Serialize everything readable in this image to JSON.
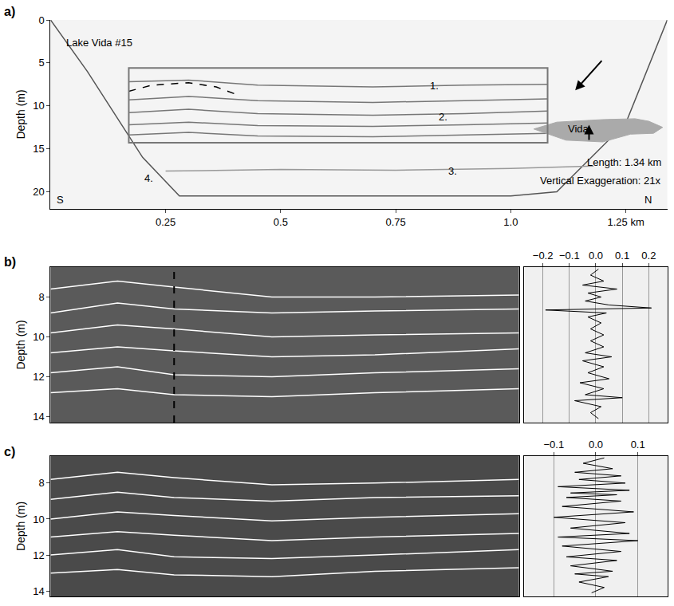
{
  "chart_data": [
    {
      "type": "line",
      "label": "a)",
      "ylabel": "Depth (m)",
      "xlim": [
        0,
        1.34
      ],
      "xticks": [
        0.25,
        0.5,
        0.75,
        {
          "value": 1,
          "label": "1.0"
        },
        {
          "value": 1.25,
          "label": "1.25 km"
        }
      ],
      "ylim": [
        22,
        0
      ],
      "yticks": [
        0,
        5,
        10,
        15,
        20
      ],
      "series": [
        {
          "color": "#555555",
          "line_style": "solid",
          "x": [
            0,
            0.08,
            0.2,
            0.28,
            0.5,
            1.0,
            1.1,
            1.25,
            1.34
          ],
          "values": [
            0,
            6,
            16,
            20.5,
            20.5,
            20.5,
            20,
            12,
            0
          ]
        },
        {
          "color": "#777777",
          "line_style": "solid",
          "x": [
            0.17,
            0.3,
            0.45,
            0.7,
            0.9,
            1.08
          ],
          "values": [
            7.2,
            7.0,
            7.6,
            7.8,
            7.6,
            7.5
          ]
        },
        {
          "color": "#777777",
          "line_style": "solid",
          "x": [
            0.17,
            0.3,
            0.45,
            0.7,
            0.9,
            1.08
          ],
          "values": [
            9.3,
            8.9,
            9.4,
            9.6,
            9.4,
            9.2
          ]
        },
        {
          "color": "#777777",
          "line_style": "solid",
          "x": [
            0.17,
            0.3,
            0.45,
            0.7,
            0.9,
            1.08
          ],
          "values": [
            10.8,
            10.4,
            10.9,
            11.1,
            10.9,
            10.6
          ]
        },
        {
          "color": "#777777",
          "line_style": "solid",
          "x": [
            0.17,
            0.3,
            0.45,
            0.7,
            0.9,
            1.08
          ],
          "values": [
            12.2,
            11.9,
            12.3,
            12.4,
            12.2,
            12.0
          ]
        },
        {
          "color": "#777777",
          "line_style": "solid",
          "x": [
            0.17,
            0.3,
            0.45,
            0.7,
            0.9,
            1.08
          ],
          "values": [
            13.4,
            13.1,
            13.5,
            13.6,
            13.4,
            13.2
          ]
        },
        {
          "color": "#999999",
          "line_style": "solid",
          "x": [
            0.25,
            0.5,
            0.75,
            1.0,
            1.18
          ],
          "values": [
            17.6,
            17.4,
            17.5,
            17.3,
            17.0
          ]
        },
        {
          "color": "#000000",
          "line_style": "dashed",
          "x": [
            0.17,
            0.22,
            0.3,
            0.36,
            0.4
          ],
          "values": [
            8.3,
            7.6,
            7.3,
            7.8,
            8.6
          ]
        },
        {
          "color": "#aaaaaa",
          "type": "area",
          "x": [
            1.05,
            1.1,
            1.2,
            1.27,
            1.3,
            1.33,
            1.31,
            1.26,
            1.2,
            1.12,
            1.05
          ],
          "values": [
            12.7,
            11.9,
            11.6,
            11.5,
            11.8,
            12.5,
            13.2,
            13.3,
            14.2,
            14.0,
            12.7
          ]
        }
      ],
      "box": {
        "x": [
          0.17,
          1.08
        ],
        "y": [
          5.6,
          14.3
        ],
        "color": "#777777"
      },
      "arrows": [
        {
          "x": 1.14,
          "y": 8.2,
          "from_x": 1.2,
          "from_y": 4.6,
          "color": "#000000"
        },
        {
          "x": 1.17,
          "y": 12.2,
          "from_x": 1.17,
          "from_y": 14.1,
          "color": "#000000"
        }
      ],
      "annotations": [
        {
          "text": "Lake Vida #15",
          "x": 0.03,
          "y": 2.6
        },
        {
          "text": "1.",
          "x": 0.82,
          "y": 7.7
        },
        {
          "text": "2.",
          "x": 0.84,
          "y": 11.3
        },
        {
          "text": "3.",
          "x": 0.86,
          "y": 17.6
        },
        {
          "text": "4.",
          "x": 0.2,
          "y": 18.4
        },
        {
          "text": "Vida",
          "x": 1.12,
          "y": 12.7
        },
        {
          "text": "Length: 1.34 km",
          "x": 1.33,
          "y": 16.6
        },
        {
          "text": "Vertical Exaggeration: 21x",
          "x": 1.33,
          "y": 18.7
        },
        {
          "text": "S",
          "x": 0.01,
          "y": 20.9
        },
        {
          "text": "N",
          "x": 1.31,
          "y": 20.9
        }
      ]
    },
    {
      "type": "line",
      "label": "b)",
      "ylabel": "Depth (m)",
      "tick_labels": "y",
      "xlim": [
        0.17,
        1.08
      ],
      "ylim": [
        14.3,
        6.5
      ],
      "yticks": [
        8,
        10,
        12,
        14
      ],
      "vline": {
        "x": 0.41,
        "color": "#000000",
        "line_style": "dashed"
      },
      "series": [
        {
          "color": "#ffffff",
          "line_style": "solid",
          "x": [
            0.17,
            0.3,
            0.41,
            0.6,
            0.8,
            1.08
          ],
          "values": [
            7.6,
            7.2,
            7.5,
            8.0,
            8.0,
            7.9
          ]
        },
        {
          "color": "#ffffff",
          "line_style": "solid",
          "x": [
            0.17,
            0.3,
            0.41,
            0.6,
            0.8,
            1.08
          ],
          "values": [
            8.8,
            8.3,
            8.6,
            8.8,
            8.7,
            8.6
          ]
        },
        {
          "color": "#ffffff",
          "line_style": "solid",
          "x": [
            0.17,
            0.3,
            0.41,
            0.6,
            0.8,
            1.08
          ],
          "values": [
            9.8,
            9.4,
            9.6,
            10.0,
            9.9,
            9.8
          ]
        },
        {
          "color": "#ffffff",
          "line_style": "solid",
          "x": [
            0.17,
            0.3,
            0.41,
            0.6,
            0.8,
            1.08
          ],
          "values": [
            10.8,
            10.5,
            10.7,
            11.0,
            10.9,
            10.6
          ]
        },
        {
          "color": "#ffffff",
          "line_style": "solid",
          "x": [
            0.17,
            0.3,
            0.41,
            0.6,
            0.8,
            1.08
          ],
          "values": [
            11.8,
            11.5,
            11.9,
            12.0,
            11.8,
            11.6
          ]
        },
        {
          "color": "#ffffff",
          "line_style": "solid",
          "x": [
            0.17,
            0.3,
            0.41,
            0.6,
            0.8,
            1.08
          ],
          "values": [
            12.8,
            12.6,
            12.9,
            13.0,
            12.8,
            12.6
          ]
        }
      ]
    },
    {
      "type": "line",
      "tick_labels": "x",
      "grid": true,
      "xlim": [
        -0.27,
        0.27
      ],
      "xticks": [
        {
          "value": -0.2,
          "label": "−0.2"
        },
        {
          "value": -0.1,
          "label": "−0.1"
        },
        {
          "value": 0,
          "label": "0.0"
        },
        {
          "value": 0.1,
          "label": "0.1"
        },
        {
          "value": 0.2,
          "label": "0.2"
        }
      ],
      "ylim": [
        14.3,
        6.5
      ],
      "series": [
        {
          "color": "#000000",
          "line_style": "solid",
          "x": [
            0.01,
            -0.02,
            0.03,
            -0.05,
            0.08,
            -0.03,
            0.02,
            -0.04,
            0.05,
            0.21,
            -0.19,
            0.04,
            -0.03,
            0.02,
            -0.02,
            0.03,
            -0.02,
            0.03,
            -0.04,
            0.06,
            -0.05,
            0.03,
            -0.03,
            0.05,
            -0.06,
            0.03,
            -0.04,
            0.1,
            -0.08,
            0.02,
            -0.02,
            0.01
          ],
          "values": [
            6.6,
            6.9,
            7.2,
            7.4,
            7.6,
            7.8,
            8.0,
            8.2,
            8.4,
            8.55,
            8.65,
            8.8,
            9.0,
            9.3,
            9.6,
            9.9,
            10.2,
            10.5,
            10.8,
            11.0,
            11.2,
            11.5,
            11.8,
            12.1,
            12.3,
            12.6,
            12.9,
            13.05,
            13.2,
            13.5,
            13.8,
            14.1
          ]
        }
      ]
    },
    {
      "type": "line",
      "label": "c)",
      "ylabel": "Depth (m)",
      "tick_labels": "y",
      "xlim": [
        0.17,
        1.08
      ],
      "ylim": [
        14.3,
        6.5
      ],
      "yticks": [
        8,
        10,
        12,
        14
      ],
      "series": [
        {
          "color": "#ffffff",
          "line_style": "solid",
          "x": [
            0.17,
            0.3,
            0.41,
            0.6,
            0.8,
            1.08
          ],
          "values": [
            7.8,
            7.4,
            7.7,
            8.1,
            8.0,
            7.8
          ]
        },
        {
          "color": "#ffffff",
          "line_style": "solid",
          "x": [
            0.17,
            0.3,
            0.41,
            0.6,
            0.8,
            1.08
          ],
          "values": [
            8.9,
            8.5,
            8.8,
            9.0,
            8.8,
            8.7
          ]
        },
        {
          "color": "#ffffff",
          "line_style": "solid",
          "x": [
            0.17,
            0.3,
            0.41,
            0.6,
            0.8,
            1.08
          ],
          "values": [
            10.0,
            9.6,
            9.8,
            10.1,
            9.9,
            9.7
          ]
        },
        {
          "color": "#ffffff",
          "line_style": "solid",
          "x": [
            0.17,
            0.3,
            0.41,
            0.6,
            0.8,
            1.08
          ],
          "values": [
            11.0,
            10.7,
            10.9,
            11.2,
            11.0,
            10.8
          ]
        },
        {
          "color": "#ffffff",
          "line_style": "solid",
          "x": [
            0.17,
            0.3,
            0.41,
            0.6,
            0.8,
            1.08
          ],
          "values": [
            12.0,
            11.7,
            12.1,
            12.2,
            12.0,
            11.7
          ]
        },
        {
          "color": "#ffffff",
          "line_style": "solid",
          "x": [
            0.17,
            0.3,
            0.41,
            0.6,
            0.8,
            1.08
          ],
          "values": [
            13.0,
            12.8,
            13.1,
            13.2,
            12.9,
            12.7
          ]
        }
      ]
    },
    {
      "type": "line",
      "tick_labels": "x",
      "grid": true,
      "xlim": [
        -0.17,
        0.17
      ],
      "xticks": [
        {
          "value": -0.1,
          "label": "−0.1"
        },
        {
          "value": 0,
          "label": "0.0"
        },
        {
          "value": 0.1,
          "label": "0.1"
        }
      ],
      "ylim": [
        14.3,
        6.5
      ],
      "series": [
        {
          "color": "#000000",
          "line_style": "solid",
          "x": [
            0.02,
            -0.03,
            0.04,
            -0.05,
            0.06,
            -0.04,
            0.07,
            -0.09,
            0.08,
            -0.06,
            0.05,
            -0.07,
            0.06,
            -0.08,
            0.09,
            -0.1,
            0.07,
            -0.06,
            0.08,
            -0.09,
            0.1,
            -0.08,
            0.06,
            -0.07,
            0.05,
            -0.06,
            0.04,
            -0.05,
            0.03,
            -0.04,
            0.02,
            -0.01
          ],
          "values": [
            6.6,
            6.9,
            7.2,
            7.4,
            7.6,
            7.8,
            8.0,
            8.2,
            8.4,
            8.55,
            8.65,
            8.8,
            9.0,
            9.3,
            9.6,
            9.9,
            10.2,
            10.5,
            10.8,
            11.0,
            11.2,
            11.5,
            11.8,
            12.1,
            12.3,
            12.6,
            12.9,
            13.05,
            13.2,
            13.5,
            13.8,
            14.1
          ]
        }
      ]
    }
  ]
}
